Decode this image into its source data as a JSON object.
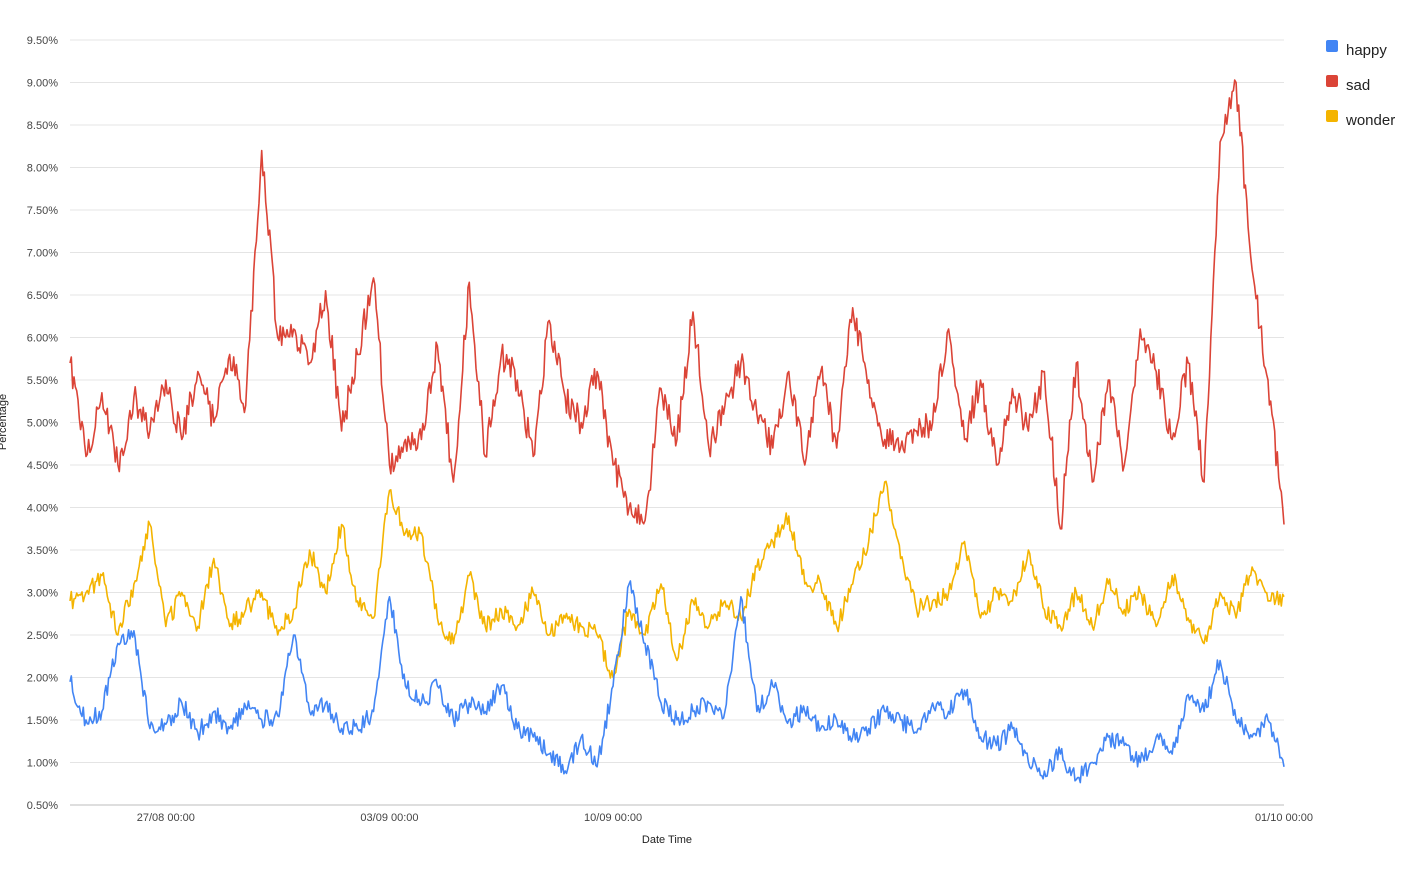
{
  "chart_data": {
    "type": "line",
    "xlabel": "Date Time",
    "ylabel": "Percentage",
    "x_start": "2018-08-24T00:00",
    "x_end": "2018-10-01T00:00",
    "x_ticks": [
      {
        "label": "27/08 00:00",
        "value": "2018-08-27T00:00"
      },
      {
        "label": "03/09 00:00",
        "value": "2018-09-03T00:00"
      },
      {
        "label": "10/09 00:00",
        "value": "2018-09-10T00:00"
      },
      {
        "label": "01/10 00:00",
        "value": "2018-10-01T00:00"
      }
    ],
    "ylim": [
      0.5,
      9.5
    ],
    "y_ticks": [
      0.5,
      1.0,
      1.5,
      2.0,
      2.5,
      3.0,
      3.5,
      4.0,
      4.5,
      5.0,
      5.5,
      6.0,
      6.5,
      7.0,
      7.5,
      8.0,
      8.5,
      9.0,
      9.5
    ],
    "y_tick_labels": [
      "0.50%",
      "1.00%",
      "1.50%",
      "2.00%",
      "2.50%",
      "3.00%",
      "3.50%",
      "4.00%",
      "4.50%",
      "5.00%",
      "5.50%",
      "6.00%",
      "6.50%",
      "7.00%",
      "7.50%",
      "8.00%",
      "8.50%",
      "9.00%",
      "9.50%"
    ],
    "grid": true,
    "legend_position": "right",
    "series": [
      {
        "name": "happy",
        "color": "#4285F4",
        "x": [
          "2018-08-24T00:00",
          "2018-08-24T12:00",
          "2018-08-25T00:00",
          "2018-08-25T12:00",
          "2018-08-26T00:00",
          "2018-08-26T12:00",
          "2018-08-27T00:00",
          "2018-08-27T12:00",
          "2018-08-28T00:00",
          "2018-08-28T12:00",
          "2018-08-29T00:00",
          "2018-08-29T12:00",
          "2018-08-30T00:00",
          "2018-08-30T12:00",
          "2018-08-31T00:00",
          "2018-08-31T12:00",
          "2018-09-01T00:00",
          "2018-09-01T12:00",
          "2018-09-02T00:00",
          "2018-09-02T12:00",
          "2018-09-03T00:00",
          "2018-09-03T12:00",
          "2018-09-04T00:00",
          "2018-09-04T12:00",
          "2018-09-05T00:00",
          "2018-09-05T12:00",
          "2018-09-06T00:00",
          "2018-09-06T12:00",
          "2018-09-07T00:00",
          "2018-09-07T12:00",
          "2018-09-08T00:00",
          "2018-09-08T12:00",
          "2018-09-09T00:00",
          "2018-09-09T12:00",
          "2018-09-10T00:00",
          "2018-09-10T12:00",
          "2018-09-11T00:00",
          "2018-09-11T12:00",
          "2018-09-12T00:00",
          "2018-09-12T12:00",
          "2018-09-13T00:00",
          "2018-09-13T12:00",
          "2018-09-14T00:00",
          "2018-09-14T12:00",
          "2018-09-15T00:00",
          "2018-09-15T12:00",
          "2018-09-16T00:00",
          "2018-09-16T12:00",
          "2018-09-17T00:00",
          "2018-09-17T12:00",
          "2018-09-18T00:00",
          "2018-09-18T12:00",
          "2018-09-19T00:00",
          "2018-09-19T12:00",
          "2018-09-20T00:00",
          "2018-09-20T12:00",
          "2018-09-21T00:00",
          "2018-09-21T12:00",
          "2018-09-22T00:00",
          "2018-09-22T12:00",
          "2018-09-23T00:00",
          "2018-09-23T12:00",
          "2018-09-24T00:00",
          "2018-09-24T12:00",
          "2018-09-25T00:00",
          "2018-09-25T12:00",
          "2018-09-26T00:00",
          "2018-09-26T12:00",
          "2018-09-27T00:00",
          "2018-09-27T12:00",
          "2018-09-28T00:00",
          "2018-09-28T12:00",
          "2018-09-29T00:00",
          "2018-09-29T12:00",
          "2018-09-30T00:00",
          "2018-09-30T12:00",
          "2018-10-01T00:00"
        ],
        "values": [
          1.95,
          1.5,
          1.6,
          2.4,
          2.55,
          1.4,
          1.45,
          1.7,
          1.35,
          1.6,
          1.4,
          1.65,
          1.5,
          1.55,
          2.5,
          1.6,
          1.7,
          1.4,
          1.4,
          1.6,
          2.95,
          1.9,
          1.7,
          1.9,
          1.5,
          1.7,
          1.6,
          1.9,
          1.4,
          1.3,
          1.1,
          0.9,
          1.3,
          0.95,
          1.9,
          3.1,
          2.4,
          1.7,
          1.5,
          1.6,
          1.7,
          1.6,
          2.95,
          1.6,
          1.9,
          1.5,
          1.6,
          1.4,
          1.5,
          1.3,
          1.4,
          1.6,
          1.5,
          1.35,
          1.7,
          1.6,
          1.85,
          1.3,
          1.2,
          1.4,
          1.0,
          0.9,
          1.1,
          0.8,
          1.0,
          1.3,
          1.2,
          1.0,
          1.3,
          1.1,
          1.8,
          1.6,
          2.2,
          1.5,
          1.3,
          1.5,
          0.95
        ]
      },
      {
        "name": "sad",
        "color": "#DB4437",
        "x": [
          "2018-08-24T00:00",
          "2018-08-24T12:00",
          "2018-08-25T00:00",
          "2018-08-25T12:00",
          "2018-08-26T00:00",
          "2018-08-26T12:00",
          "2018-08-27T00:00",
          "2018-08-27T12:00",
          "2018-08-28T00:00",
          "2018-08-28T12:00",
          "2018-08-29T00:00",
          "2018-08-29T12:00",
          "2018-08-30T00:00",
          "2018-08-30T12:00",
          "2018-08-31T00:00",
          "2018-08-31T12:00",
          "2018-09-01T00:00",
          "2018-09-01T12:00",
          "2018-09-02T00:00",
          "2018-09-02T12:00",
          "2018-09-03T00:00",
          "2018-09-03T12:00",
          "2018-09-04T00:00",
          "2018-09-04T12:00",
          "2018-09-05T00:00",
          "2018-09-05T12:00",
          "2018-09-06T00:00",
          "2018-09-06T12:00",
          "2018-09-07T00:00",
          "2018-09-07T12:00",
          "2018-09-08T00:00",
          "2018-09-08T12:00",
          "2018-09-09T00:00",
          "2018-09-09T12:00",
          "2018-09-10T00:00",
          "2018-09-10T12:00",
          "2018-09-11T00:00",
          "2018-09-11T12:00",
          "2018-09-12T00:00",
          "2018-09-12T12:00",
          "2018-09-13T00:00",
          "2018-09-13T12:00",
          "2018-09-14T00:00",
          "2018-09-14T12:00",
          "2018-09-15T00:00",
          "2018-09-15T12:00",
          "2018-09-16T00:00",
          "2018-09-16T12:00",
          "2018-09-17T00:00",
          "2018-09-17T12:00",
          "2018-09-18T00:00",
          "2018-09-18T12:00",
          "2018-09-19T00:00",
          "2018-09-19T12:00",
          "2018-09-20T00:00",
          "2018-09-20T12:00",
          "2018-09-21T00:00",
          "2018-09-21T12:00",
          "2018-09-22T00:00",
          "2018-09-22T12:00",
          "2018-09-23T00:00",
          "2018-09-23T12:00",
          "2018-09-24T00:00",
          "2018-09-24T12:00",
          "2018-09-25T00:00",
          "2018-09-25T12:00",
          "2018-09-26T00:00",
          "2018-09-26T12:00",
          "2018-09-27T00:00",
          "2018-09-27T12:00",
          "2018-09-28T00:00",
          "2018-09-28T12:00",
          "2018-09-29T00:00",
          "2018-09-29T12:00",
          "2018-09-30T00:00",
          "2018-09-30T12:00",
          "2018-10-01T00:00"
        ],
        "values": [
          5.7,
          4.6,
          5.35,
          4.5,
          5.3,
          4.9,
          5.5,
          4.8,
          5.6,
          5.0,
          5.8,
          5.2,
          8.2,
          6.0,
          6.1,
          5.7,
          6.55,
          4.9,
          5.8,
          6.7,
          4.5,
          4.8,
          4.8,
          5.9,
          4.3,
          6.65,
          4.6,
          5.8,
          5.5,
          4.6,
          6.2,
          5.3,
          5.0,
          5.6,
          4.5,
          4.0,
          3.85,
          5.4,
          4.8,
          6.3,
          4.7,
          5.2,
          5.7,
          5.1,
          4.7,
          5.6,
          4.5,
          5.6,
          4.7,
          6.35,
          5.5,
          4.8,
          4.7,
          4.9,
          5.0,
          6.1,
          4.8,
          5.5,
          4.5,
          5.4,
          4.9,
          5.6,
          3.75,
          5.7,
          4.3,
          5.5,
          4.5,
          6.1,
          5.6,
          4.8,
          5.7,
          4.3,
          8.3,
          9.0,
          6.8,
          5.5,
          3.8
        ]
      },
      {
        "name": "wonder",
        "color": "#F4B400",
        "x": [
          "2018-08-24T00:00",
          "2018-08-24T12:00",
          "2018-08-25T00:00",
          "2018-08-25T12:00",
          "2018-08-26T00:00",
          "2018-08-26T12:00",
          "2018-08-27T00:00",
          "2018-08-27T12:00",
          "2018-08-28T00:00",
          "2018-08-28T12:00",
          "2018-08-29T00:00",
          "2018-08-29T12:00",
          "2018-08-30T00:00",
          "2018-08-30T12:00",
          "2018-08-31T00:00",
          "2018-08-31T12:00",
          "2018-09-01T00:00",
          "2018-09-01T12:00",
          "2018-09-02T00:00",
          "2018-09-02T12:00",
          "2018-09-03T00:00",
          "2018-09-03T12:00",
          "2018-09-04T00:00",
          "2018-09-04T12:00",
          "2018-09-05T00:00",
          "2018-09-05T12:00",
          "2018-09-06T00:00",
          "2018-09-06T12:00",
          "2018-09-07T00:00",
          "2018-09-07T12:00",
          "2018-09-08T00:00",
          "2018-09-08T12:00",
          "2018-09-09T00:00",
          "2018-09-09T12:00",
          "2018-09-10T00:00",
          "2018-09-10T12:00",
          "2018-09-11T00:00",
          "2018-09-11T12:00",
          "2018-09-12T00:00",
          "2018-09-12T12:00",
          "2018-09-13T00:00",
          "2018-09-13T12:00",
          "2018-09-14T00:00",
          "2018-09-14T12:00",
          "2018-09-15T00:00",
          "2018-09-15T12:00",
          "2018-09-16T00:00",
          "2018-09-16T12:00",
          "2018-09-17T00:00",
          "2018-09-17T12:00",
          "2018-09-18T00:00",
          "2018-09-18T12:00",
          "2018-09-19T00:00",
          "2018-09-19T12:00",
          "2018-09-20T00:00",
          "2018-09-20T12:00",
          "2018-09-21T00:00",
          "2018-09-21T12:00",
          "2018-09-22T00:00",
          "2018-09-22T12:00",
          "2018-09-23T00:00",
          "2018-09-23T12:00",
          "2018-09-24T00:00",
          "2018-09-24T12:00",
          "2018-09-25T00:00",
          "2018-09-25T12:00",
          "2018-09-26T00:00",
          "2018-09-26T12:00",
          "2018-09-27T00:00",
          "2018-09-27T12:00",
          "2018-09-28T00:00",
          "2018-09-28T12:00",
          "2018-09-29T00:00",
          "2018-09-29T12:00",
          "2018-09-30T00:00",
          "2018-09-30T12:00",
          "2018-10-01T00:00"
        ],
        "values": [
          2.9,
          3.0,
          3.2,
          2.5,
          3.1,
          3.8,
          2.6,
          3.0,
          2.6,
          3.4,
          2.6,
          2.8,
          3.0,
          2.5,
          2.8,
          3.5,
          3.0,
          3.8,
          2.9,
          2.7,
          4.2,
          3.7,
          3.7,
          2.7,
          2.4,
          3.2,
          2.6,
          2.8,
          2.6,
          3.0,
          2.5,
          2.7,
          2.6,
          2.5,
          2.0,
          2.8,
          2.5,
          3.1,
          2.2,
          2.9,
          2.6,
          2.9,
          2.7,
          3.3,
          3.6,
          3.9,
          3.1,
          3.1,
          2.6,
          3.1,
          3.6,
          4.3,
          3.4,
          2.8,
          2.9,
          3.0,
          3.6,
          2.7,
          3.0,
          2.9,
          3.5,
          2.8,
          2.6,
          3.0,
          2.6,
          3.1,
          2.8,
          3.0,
          2.6,
          3.2,
          2.7,
          2.4,
          3.0,
          2.7,
          3.3,
          2.9,
          2.95
        ]
      }
    ]
  }
}
